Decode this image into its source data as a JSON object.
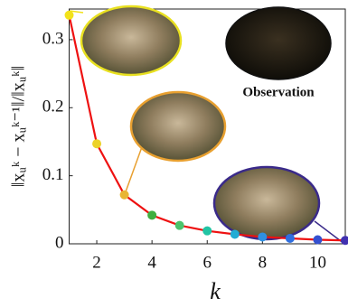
{
  "chart_data": {
    "type": "line",
    "x": [
      1,
      2,
      3,
      4,
      5,
      6,
      7,
      8,
      9,
      10,
      11
    ],
    "series": [
      {
        "color": "#ee1111",
        "values": [
          0.336,
          0.147,
          0.072,
          0.042,
          0.027,
          0.019,
          0.014,
          0.01,
          0.008,
          0.006,
          0.005
        ]
      }
    ],
    "marker_colors": [
      "#f2e21a",
      "#ecd22a",
      "#e8b534",
      "#3fae3f",
      "#4cc46c",
      "#22c4a4",
      "#22acd4",
      "#2f90e2",
      "#2f6fe0",
      "#3450d0",
      "#4030b0"
    ],
    "xlim": [
      1,
      11
    ],
    "xticks": [
      2,
      4,
      6,
      8,
      10
    ],
    "ylim": [
      0,
      0.345
    ],
    "yticks": [
      0,
      0.1,
      0.2,
      0.3
    ],
    "xlabel": "k",
    "ylabel": "‖xᵤᵏ − xᵤᵏ⁻¹‖/‖xᵤᵏ‖",
    "annotation": "Observation"
  }
}
